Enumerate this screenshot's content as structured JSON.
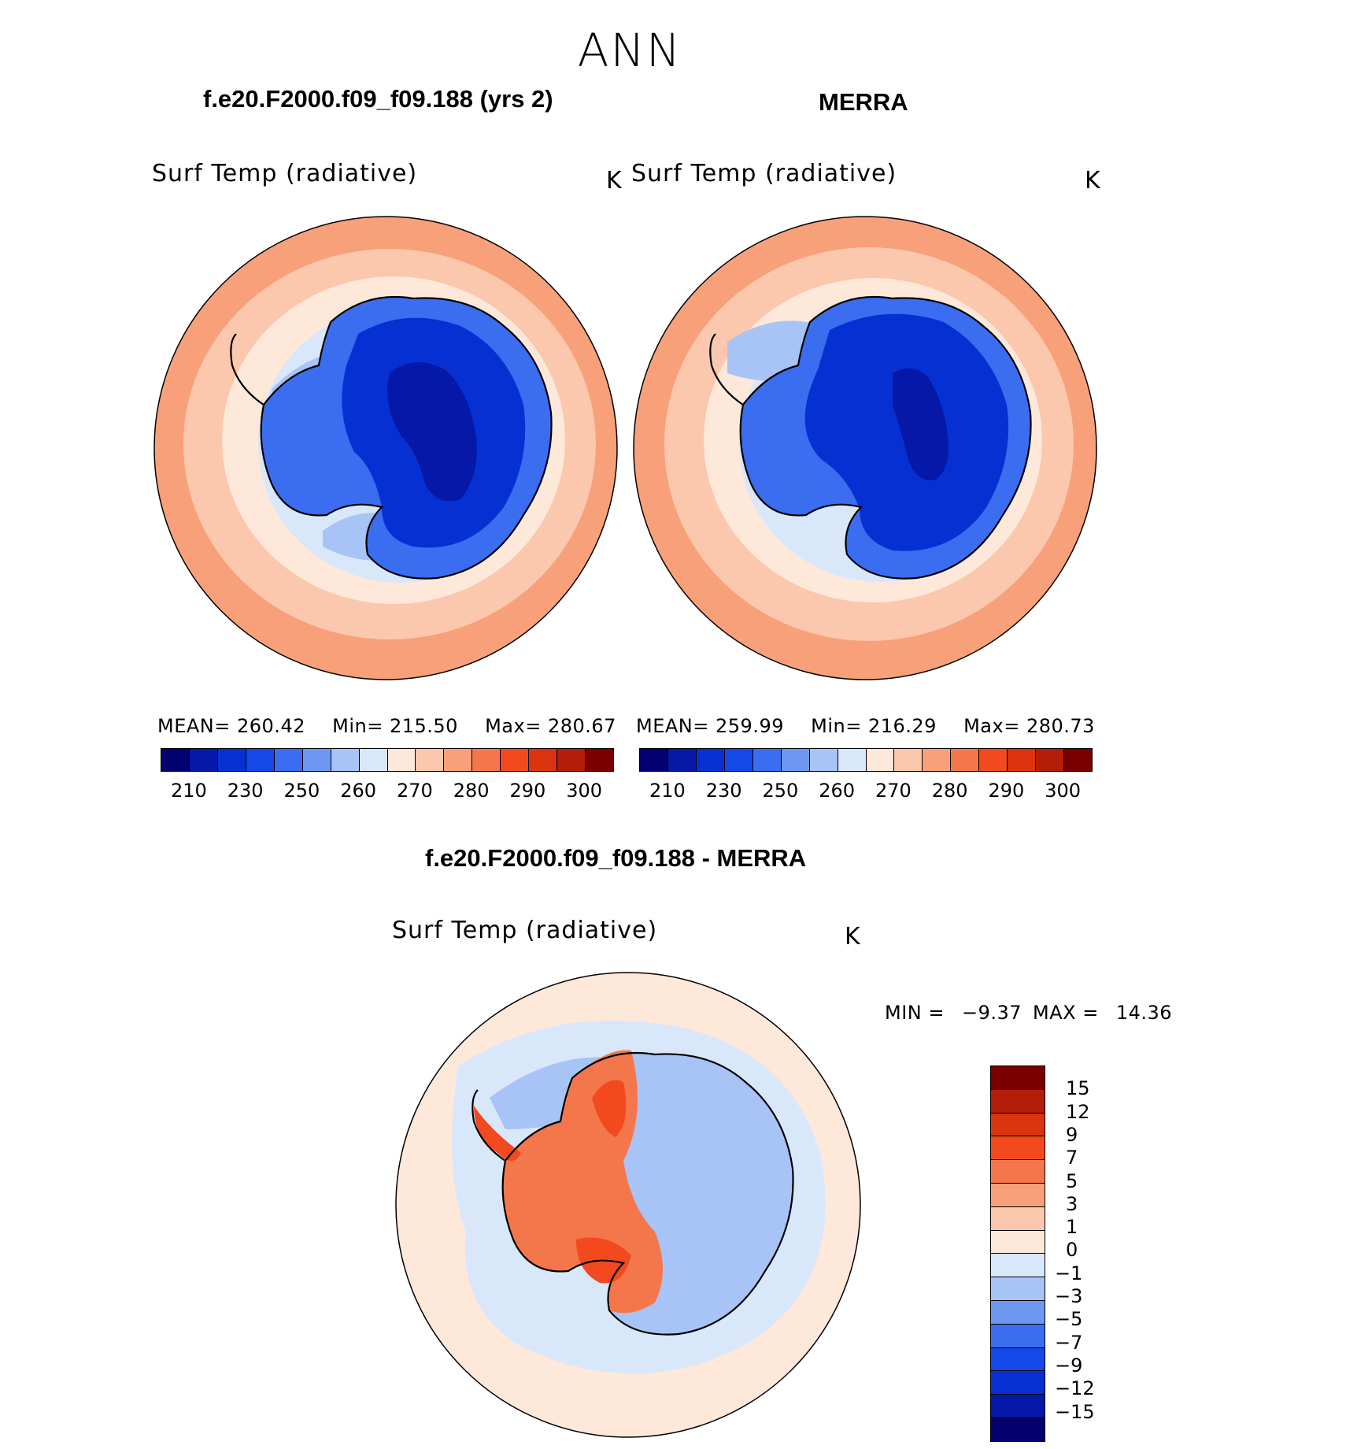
{
  "season": "ANN",
  "panels": [
    {
      "title": "f.e20.F2000.f09_f09.188 (yrs 2)",
      "variable": "Surf Temp (radiative)",
      "units": "K",
      "stats": {
        "mean_label": "MEAN=",
        "mean": "260.42",
        "min_label": "Min=",
        "min": "215.50",
        "max_label": "Max=",
        "max": "280.67"
      }
    },
    {
      "title": "MERRA",
      "variable": "Surf Temp (radiative)",
      "units": "K",
      "stats": {
        "mean_label": "MEAN=",
        "mean": "259.99",
        "min_label": "Min=",
        "min": "216.29",
        "max_label": "Max=",
        "max": "280.73"
      }
    }
  ],
  "abs_colorbar": {
    "colors": [
      "#03006f",
      "#0518a8",
      "#0730d3",
      "#1448e8",
      "#3b6df0",
      "#6e97f2",
      "#a8c4f6",
      "#d9e7fb",
      "#fde8da",
      "#fbc7ad",
      "#f7a07a",
      "#f4774c",
      "#f3491f",
      "#dc3310",
      "#b21e08",
      "#7a0000"
    ],
    "tick_labels": [
      "210",
      "230",
      "250",
      "260",
      "270",
      "280",
      "290",
      "300"
    ]
  },
  "diff_panel": {
    "title": "f.e20.F2000.f09_f09.188 - MERRA",
    "variable": "Surf Temp (radiative)",
    "units": "K",
    "min_label": "MIN =",
    "min": "−9.37",
    "max_label": "MAX =",
    "max": "14.36"
  },
  "diff_colorbar": {
    "colors": [
      "#7a0000",
      "#b21e08",
      "#dc3310",
      "#f3491f",
      "#f4774c",
      "#f7a07a",
      "#fbc7ad",
      "#fde8da",
      "#d9e7fb",
      "#a8c4f6",
      "#6e97f2",
      "#3b6df0",
      "#1448e8",
      "#0730d3",
      "#0518a8",
      "#03006f"
    ],
    "tick_labels": [
      "15",
      "12",
      "9",
      "7",
      "5",
      "3",
      "1",
      "0",
      "−1",
      "−3",
      "−5",
      "−7",
      "−9",
      "−12",
      "−15"
    ]
  },
  "map_colors": {
    "ocean_far": "#f7a07a",
    "ocean_mid": "#fbc7ad",
    "ocean_near": "#fde8da",
    "sea_ice": "#d9e7fb",
    "ice_shelf": "#a8c4f6",
    "coast_ice": "#3b6df0",
    "interior": "#0730d3",
    "plateau": "#0518a8",
    "diff_ocean": "#fde8da",
    "diff_cold": "#d9e7fb",
    "diff_cold2": "#a8c4f6",
    "diff_warm": "#f4774c",
    "diff_warm2": "#f3491f"
  }
}
